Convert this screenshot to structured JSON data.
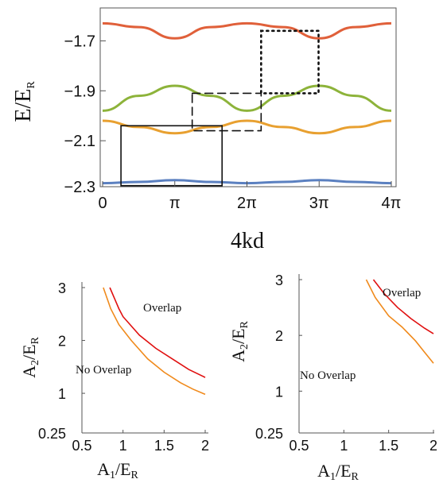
{
  "chart_data": [
    {
      "type": "line",
      "panel": "band-structure",
      "xlabel": "4kd",
      "ylabel_main": "E/E",
      "ylabel_sub": "R",
      "xlim": [
        0,
        12.566
      ],
      "ylim": [
        -2.3,
        -1.6
      ],
      "xticks": [
        {
          "value": 0,
          "label": "0"
        },
        {
          "value": 3.1416,
          "label": "π"
        },
        {
          "value": 6.2832,
          "label": "2π"
        },
        {
          "value": 9.4248,
          "label": "3π"
        },
        {
          "value": 12.566,
          "label": "4π"
        }
      ],
      "yticks": [
        {
          "value": -1.7,
          "label": "−1.7"
        },
        {
          "value": -1.9,
          "label": "−1.9"
        },
        {
          "value": -2.1,
          "label": "−2.1"
        },
        {
          "value": -2.3,
          "label": "−2.3"
        }
      ],
      "series": [
        {
          "color": "#e0603a",
          "x": [
            0,
            1.571,
            3.142,
            4.712,
            6.283,
            7.854,
            9.425,
            10.996,
            12.566
          ],
          "y": [
            -1.63,
            -1.645,
            -1.69,
            -1.645,
            -1.63,
            -1.645,
            -1.69,
            -1.645,
            -1.63
          ]
        },
        {
          "color": "#8db33a",
          "x": [
            0,
            1.571,
            3.142,
            4.712,
            6.283,
            7.854,
            9.425,
            10.996,
            12.566
          ],
          "y": [
            -1.98,
            -1.92,
            -1.88,
            -1.92,
            -1.98,
            -1.92,
            -1.88,
            -1.92,
            -1.98
          ]
        },
        {
          "color": "#e8a030",
          "x": [
            0,
            1.571,
            3.142,
            4.712,
            6.283,
            7.854,
            9.425,
            10.996,
            12.566
          ],
          "y": [
            -2.02,
            -2.045,
            -2.07,
            -2.045,
            -2.02,
            -2.045,
            -2.07,
            -2.045,
            -2.02
          ]
        },
        {
          "color": "#5b80c0",
          "x": [
            0,
            1.571,
            3.142,
            4.712,
            6.283,
            7.854,
            9.425,
            10.996,
            12.566
          ],
          "y": [
            -2.27,
            -2.265,
            -2.258,
            -2.265,
            -2.27,
            -2.265,
            -2.258,
            -2.265,
            -2.27
          ]
        }
      ],
      "boxes": [
        {
          "style": "solid",
          "x": [
            0.8,
            5.2
          ],
          "y": [
            -2.28,
            -2.04
          ]
        },
        {
          "style": "dashed",
          "x": [
            3.9,
            6.9
          ],
          "y": [
            -2.06,
            -1.91
          ]
        },
        {
          "style": "dotted",
          "x": [
            6.9,
            9.4
          ],
          "y": [
            -1.91,
            -1.66
          ]
        }
      ]
    },
    {
      "type": "line",
      "panel": "overlap-left",
      "xlabel_main": "A",
      "xlabel_sub1": "1",
      "xlabel_mid": "/E",
      "xlabel_sub2": "R",
      "ylabel_main": "A",
      "ylabel_sub1": "2",
      "ylabel_mid": "/E",
      "ylabel_sub2": "R",
      "xlim": [
        0.5,
        2.0
      ],
      "ylim": [
        0.25,
        3.0
      ],
      "xticks": [
        {
          "value": 0.5,
          "label": "0.5"
        },
        {
          "value": 1.0,
          "label": "1"
        },
        {
          "value": 1.5,
          "label": "1.5"
        },
        {
          "value": 2.0,
          "label": "2"
        }
      ],
      "yticks": [
        {
          "value": 0.25,
          "label": "0.25"
        },
        {
          "value": 1.0,
          "label": "1"
        },
        {
          "value": 2.0,
          "label": "2"
        },
        {
          "value": 3.0,
          "label": "3"
        }
      ],
      "annotations": {
        "upper": "Overlap",
        "lower": "No Overlap"
      },
      "series": [
        {
          "color": "#e01010",
          "x": [
            0.84,
            0.95,
            1.0,
            1.2,
            1.4,
            1.6,
            1.8,
            2.0
          ],
          "y": [
            3.0,
            2.6,
            2.45,
            2.1,
            1.85,
            1.65,
            1.45,
            1.3
          ]
        },
        {
          "color": "#f08a1c",
          "x": [
            0.76,
            0.85,
            0.95,
            1.1,
            1.3,
            1.5,
            1.7,
            1.85,
            2.0
          ],
          "y": [
            3.0,
            2.6,
            2.3,
            2.0,
            1.65,
            1.4,
            1.2,
            1.08,
            0.98
          ]
        }
      ]
    },
    {
      "type": "line",
      "panel": "overlap-right",
      "xlabel_main": "A",
      "xlabel_sub1": "1",
      "xlabel_mid": "/E",
      "xlabel_sub2": "R",
      "ylabel_main": "A",
      "ylabel_sub1": "2",
      "ylabel_mid": "/E",
      "ylabel_sub2": "R",
      "xlim": [
        0.5,
        2.0
      ],
      "ylim": [
        0.25,
        3.0
      ],
      "xticks": [
        {
          "value": 0.5,
          "label": "0.5"
        },
        {
          "value": 1.0,
          "label": "1"
        },
        {
          "value": 1.5,
          "label": "1.5"
        },
        {
          "value": 2.0,
          "label": "2"
        }
      ],
      "yticks": [
        {
          "value": 0.25,
          "label": "0.25"
        },
        {
          "value": 1.0,
          "label": "1"
        },
        {
          "value": 2.0,
          "label": "2"
        },
        {
          "value": 3.0,
          "label": "3"
        }
      ],
      "annotations": {
        "upper": "Overlap",
        "lower": "No Overlap"
      },
      "series": [
        {
          "color": "#e01010",
          "x": [
            1.33,
            1.45,
            1.6,
            1.75,
            1.9,
            2.0
          ],
          "y": [
            3.0,
            2.75,
            2.5,
            2.3,
            2.13,
            2.03
          ]
        },
        {
          "color": "#f08a1c",
          "x": [
            1.25,
            1.35,
            1.5,
            1.65,
            1.8,
            1.9,
            2.0
          ],
          "y": [
            3.0,
            2.68,
            2.35,
            2.15,
            1.9,
            1.7,
            1.5
          ]
        }
      ]
    }
  ]
}
